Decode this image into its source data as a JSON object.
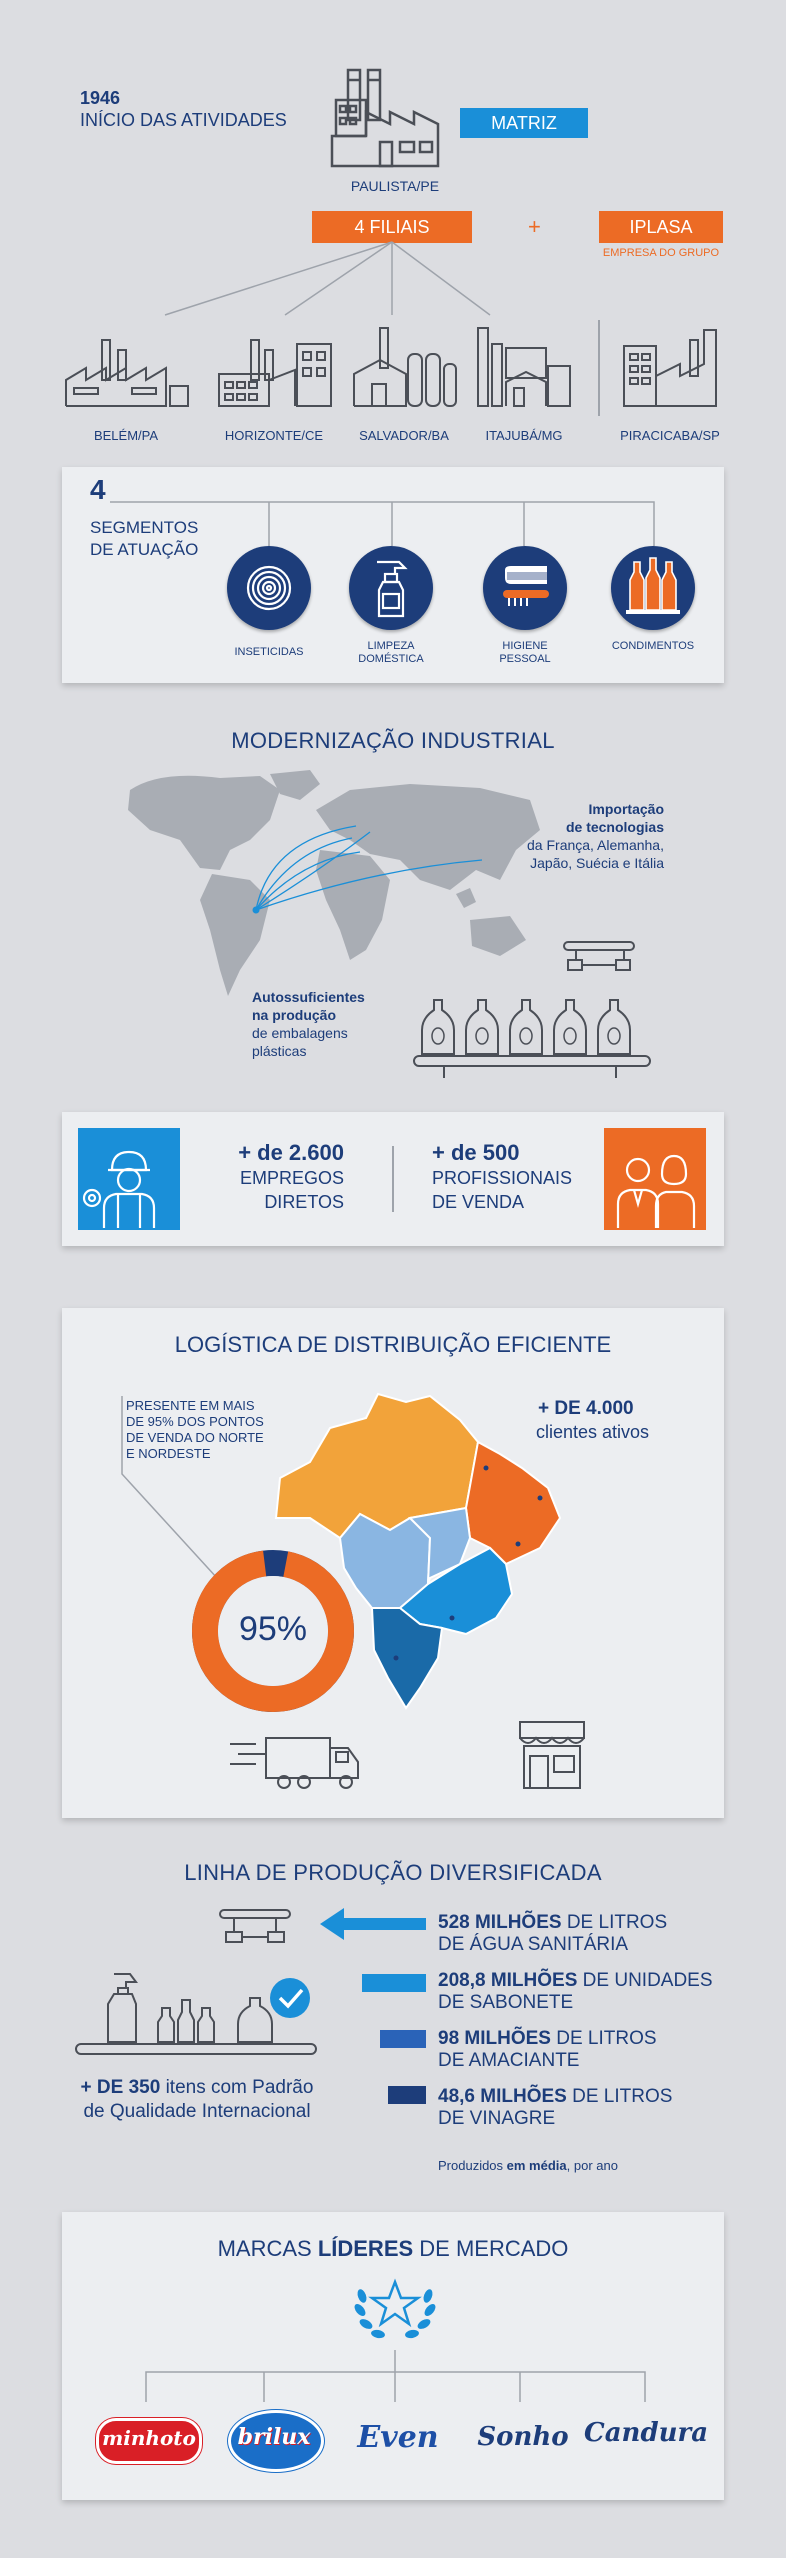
{
  "header": {
    "year": "1946",
    "start_label": "INÍCIO DAS ATIVIDADES",
    "matriz_label": "MATRIZ",
    "matriz_city": "PAULISTA/PE",
    "filiais_label": "4 FILIAIS",
    "plus": "+",
    "iplasa_label": "IPLASA",
    "iplasa_sub": "EMPRESA DO GRUPO",
    "cities": [
      "BELÉM/PA",
      "HORIZONTE/CE",
      "SALVADOR/BA",
      "ITAJUBÁ/MG",
      "PIRACICABA/SP"
    ]
  },
  "segments": {
    "number": "4",
    "title_line1": "SEGMENTOS",
    "title_line2": "DE ATUAÇÃO",
    "items": [
      {
        "label_line1": "INSETICIDAS",
        "label_line2": "",
        "icon": "coil-icon"
      },
      {
        "label_line1": "LIMPEZA",
        "label_line2": "DOMÉSTICA",
        "icon": "spray-bottle-icon"
      },
      {
        "label_line1": "HIGIENE",
        "label_line2": "PESSOAL",
        "icon": "toothbrush-icon"
      },
      {
        "label_line1": "CONDIMENTOS",
        "label_line2": "",
        "icon": "bottles-icon"
      }
    ]
  },
  "modernization": {
    "title": "MODERNIZAÇÃO INDUSTRIAL",
    "import_bold1": "Importação",
    "import_bold2": "de tecnologias",
    "import_line3": "da França, Alemanha,",
    "import_line4": "Japão, Suécia e Itália",
    "self_bold1": "Autossuficientes",
    "self_bold2": "na produção",
    "self_line3": "de embalagens",
    "self_line4": "plásticas"
  },
  "employees": {
    "direct_number": "+ de 2.600",
    "direct_line1": "EMPREGOS",
    "direct_line2": "DIRETOS",
    "sales_number": "+ de 500",
    "sales_line1": "PROFISSIONAIS",
    "sales_line2": "DE VENDA"
  },
  "logistics": {
    "title": "LOGÍSTICA DE DISTRIBUIÇÃO EFICIENTE",
    "note_line1": "PRESENTE EM MAIS",
    "note_line2": "DE 95% DOS PONTOS",
    "note_line3": "DE VENDA DO NORTE",
    "note_line4": "E NORDESTE",
    "percent_label": "95%",
    "percent_value": 95,
    "clients_bold": "+ DE 4.000",
    "clients_line2": "clientes ativos"
  },
  "production": {
    "title": "LINHA DE PRODUÇÃO DIVERSIFICADA",
    "items_bold": "+ DE 350",
    "items_rest": " itens com Padrão",
    "items_line2": "de Qualidade Internacional",
    "stats": [
      {
        "bold": "528 MILHÕES",
        "rest": " DE LITROS",
        "line2": "DE ÁGUA SANITÁRIA"
      },
      {
        "bold": "208,8 MILHÕES",
        "rest": " DE UNIDADES",
        "line2": "DE SABONETE"
      },
      {
        "bold": "98 MILHÕES",
        "rest": " DE LITROS",
        "line2": "DE AMACIANTE"
      },
      {
        "bold": "48,6 MILHÕES",
        "rest": " DE LITROS",
        "line2": "DE VINAGRE"
      }
    ],
    "footnote_pre": "Produzidos ",
    "footnote_bold": "em média",
    "footnote_post": ", por ano"
  },
  "brands": {
    "title_pre": "MARCAS ",
    "title_bold": "LÍDERES",
    "title_post": " DE MERCADO",
    "items": [
      "minhoto",
      "brilux",
      "Even",
      "Sonho",
      "Candura"
    ]
  },
  "colors": {
    "navy": "#1d3d7a",
    "orange": "#ec6b25",
    "blue": "#1a8fd8",
    "light_orange": "#f2a33a"
  }
}
